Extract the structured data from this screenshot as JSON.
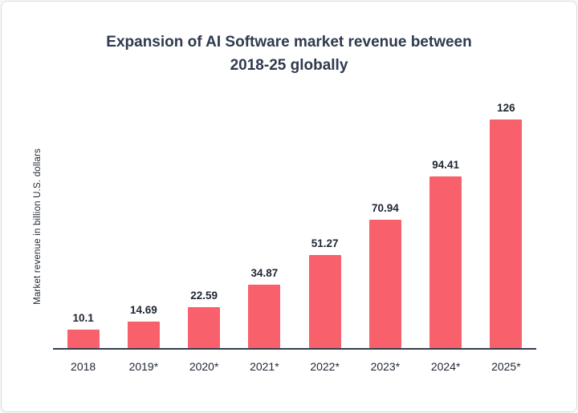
{
  "chart": {
    "title_line1": "Expansion of AI Software market revenue between",
    "title_line2": "2018-25 globally"
  },
  "chart_data": {
    "type": "bar",
    "title": "Expansion of AI Software market revenue between 2018-25 globally",
    "categories": [
      "2018",
      "2019*",
      "2020*",
      "2021*",
      "2022*",
      "2023*",
      "2024*",
      "2025*"
    ],
    "values": [
      10.1,
      14.69,
      22.59,
      34.87,
      51.27,
      70.94,
      94.41,
      126
    ],
    "value_labels": [
      "10.1",
      "14.69",
      "22.59",
      "34.87",
      "51.27",
      "70.94",
      "94.41",
      "126"
    ],
    "xlabel": "",
    "ylabel": "Market revenue in billion U.S. dollars",
    "ylim": [
      0,
      126
    ],
    "grid": false,
    "legend": false,
    "bar_color": "#f8606b",
    "axis_color": "#343e50",
    "text_color": "#1e2633"
  }
}
